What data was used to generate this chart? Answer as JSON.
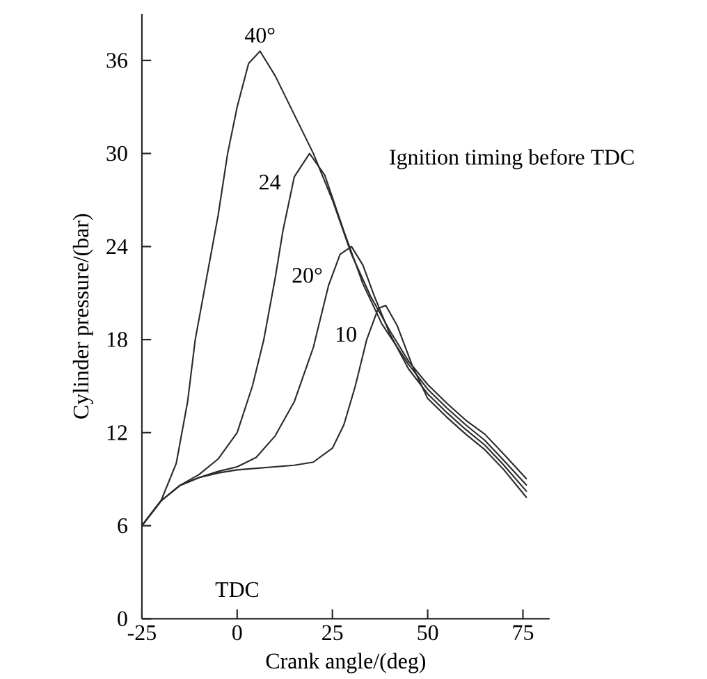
{
  "chart_data": {
    "type": "line",
    "xlabel": "Crank angle/(deg)",
    "ylabel": "Cylinder pressure/(bar)",
    "xlim": [
      -25,
      82
    ],
    "ylim": [
      0,
      39
    ],
    "xticks": [
      -25,
      0,
      25,
      50,
      75
    ],
    "yticks": [
      0,
      6,
      12,
      18,
      24,
      30,
      36
    ],
    "grid": false,
    "legend": false,
    "marker": "none",
    "line_style": "solid",
    "annotations": [
      "Ignition timing before TDC",
      "TDC"
    ],
    "series": [
      {
        "name": "40°",
        "color": "#2b2b2b",
        "x": [
          -25,
          -20,
          -16,
          -13,
          -11,
          -8,
          -5,
          -2.5,
          0,
          3,
          6,
          10,
          15,
          20,
          25,
          30,
          35,
          40,
          45,
          50,
          55,
          60,
          65,
          70,
          76
        ],
        "values": [
          6,
          7.6,
          10,
          14,
          18,
          22,
          26,
          30,
          33,
          35.8,
          36.6,
          35,
          32.5,
          30,
          27,
          23.5,
          20.8,
          18.6,
          16.6,
          15.1,
          13.9,
          12.8,
          11.9,
          10.6,
          9
        ]
      },
      {
        "name": "24",
        "color": "#2b2b2b",
        "x": [
          -25,
          -20,
          -15,
          -10,
          -5,
          0,
          4,
          7,
          10,
          12,
          15,
          19,
          23,
          28,
          33,
          38,
          45,
          50,
          55,
          60,
          65,
          70,
          76
        ],
        "values": [
          6,
          7.6,
          8.6,
          9.3,
          10.3,
          12,
          15,
          18,
          22,
          25,
          28.5,
          30,
          28.6,
          25,
          21.6,
          19,
          16.4,
          14.8,
          13.6,
          12.5,
          11.5,
          10.2,
          8.6
        ]
      },
      {
        "name": "20°",
        "color": "#2b2b2b",
        "x": [
          -25,
          -20,
          -15,
          -10,
          -5,
          0,
          5,
          10,
          15,
          20,
          24,
          27,
          30,
          33,
          36,
          40,
          45,
          50,
          55,
          60,
          65,
          70,
          76
        ],
        "values": [
          6,
          7.6,
          8.6,
          9.1,
          9.5,
          9.8,
          10.4,
          11.8,
          14,
          17.5,
          21.5,
          23.5,
          24,
          22.8,
          20.8,
          18.4,
          16.1,
          14.5,
          13.3,
          12.2,
          11.2,
          9.9,
          8.2
        ]
      },
      {
        "name": "10",
        "color": "#2b2b2b",
        "x": [
          -25,
          -20,
          -15,
          -10,
          -5,
          0,
          5,
          10,
          15,
          20,
          25,
          28,
          31,
          34,
          37,
          39,
          42,
          46,
          50,
          55,
          60,
          65,
          70,
          76
        ],
        "values": [
          6,
          7.6,
          8.6,
          9.1,
          9.4,
          9.6,
          9.7,
          9.8,
          9.9,
          10.1,
          11,
          12.5,
          15,
          18,
          20,
          20.2,
          18.9,
          16.3,
          14.2,
          13,
          11.9,
          10.9,
          9.6,
          7.8
        ]
      }
    ]
  }
}
